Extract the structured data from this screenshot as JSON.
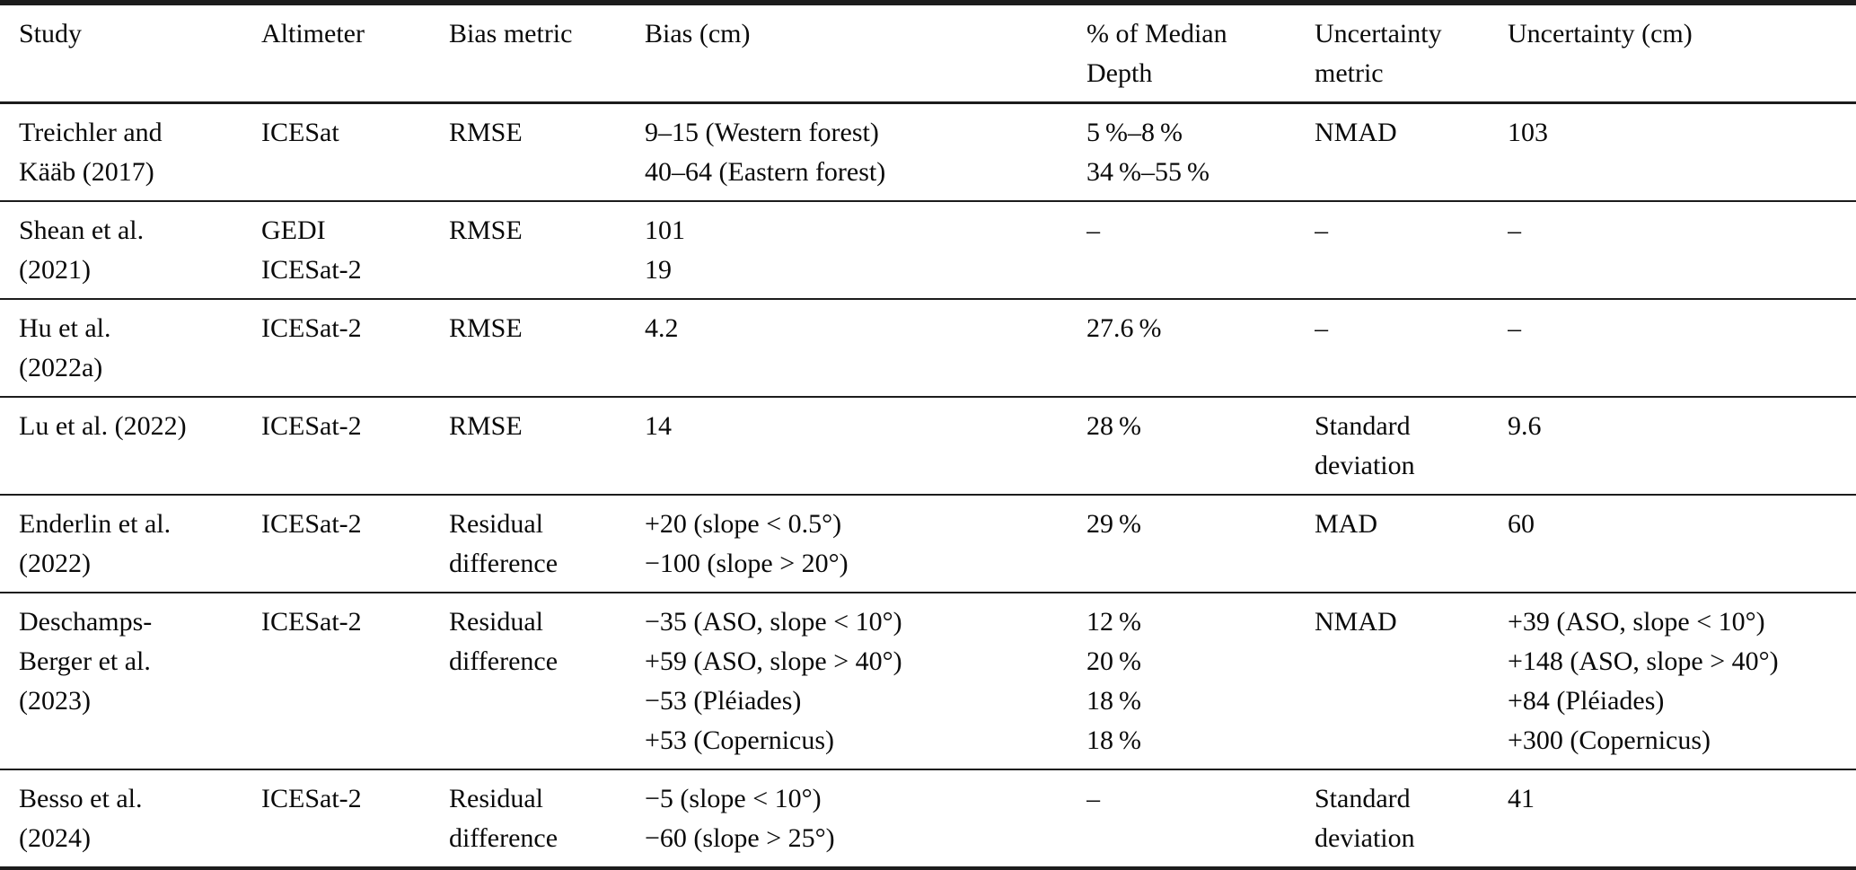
{
  "table": {
    "columns": [
      [
        "Study"
      ],
      [
        "Altimeter"
      ],
      [
        "Bias metric"
      ],
      [
        "Bias (cm)"
      ],
      [
        "% of Median",
        "Depth"
      ],
      [
        "Uncertainty",
        "metric"
      ],
      [
        "Uncertainty (cm)"
      ]
    ],
    "rows": [
      [
        [
          "Treichler and",
          "Kääb (2017)"
        ],
        [
          "ICESat"
        ],
        [
          "RMSE"
        ],
        [
          "9–15 (Western forest)",
          "40–64 (Eastern forest)"
        ],
        [
          "5 %–8 %",
          "34 %–55 %"
        ],
        [
          "NMAD"
        ],
        [
          "103"
        ]
      ],
      [
        [
          "Shean et al.",
          "(2021)"
        ],
        [
          "GEDI",
          "ICESat-2"
        ],
        [
          "RMSE"
        ],
        [
          "101",
          "19"
        ],
        [
          "–"
        ],
        [
          "–"
        ],
        [
          "–"
        ]
      ],
      [
        [
          "Hu et al.",
          "(2022a)"
        ],
        [
          "ICESat-2"
        ],
        [
          "RMSE"
        ],
        [
          "4.2"
        ],
        [
          "27.6 %"
        ],
        [
          "–"
        ],
        [
          "–"
        ]
      ],
      [
        [
          "Lu et al. (2022)"
        ],
        [
          "ICESat-2"
        ],
        [
          "RMSE"
        ],
        [
          "14"
        ],
        [
          "28 %"
        ],
        [
          "Standard",
          "deviation"
        ],
        [
          "9.6"
        ]
      ],
      [
        [
          "Enderlin et al.",
          "(2022)"
        ],
        [
          "ICESat-2"
        ],
        [
          "Residual",
          "difference"
        ],
        [
          "+20 (slope < 0.5°)",
          "−100 (slope > 20°)"
        ],
        [
          "29 %"
        ],
        [
          "MAD"
        ],
        [
          "60"
        ]
      ],
      [
        [
          "Deschamps-",
          "Berger et al.",
          "(2023)"
        ],
        [
          "ICESat-2"
        ],
        [
          "Residual",
          "difference"
        ],
        [
          "−35 (ASO, slope < 10°)",
          "+59 (ASO, slope > 40°)",
          "−53 (Pléiades)",
          "+53 (Copernicus)"
        ],
        [
          "12 %",
          "20 %",
          "18 %",
          "18 %"
        ],
        [
          "NMAD"
        ],
        [
          "+39 (ASO, slope < 10°)",
          "+148 (ASO, slope > 40°)",
          "+84 (Pléiades)",
          "+300 (Copernicus)"
        ]
      ],
      [
        [
          "Besso et al.",
          "(2024)"
        ],
        [
          "ICESat-2"
        ],
        [
          "Residual",
          "difference"
        ],
        [
          "−5 (slope < 10°)",
          "−60 (slope > 25°)"
        ],
        [
          "–"
        ],
        [
          "Standard",
          "deviation"
        ],
        [
          "41"
        ]
      ]
    ]
  }
}
